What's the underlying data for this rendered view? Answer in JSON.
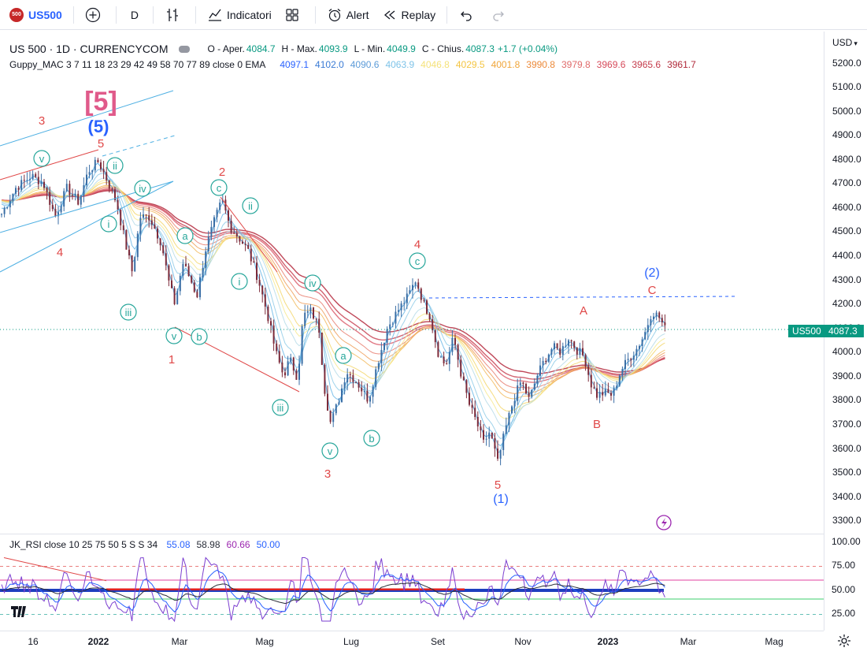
{
  "toolbar": {
    "symbol_logo": "500",
    "symbol": "US500",
    "interval": "D",
    "indicators_label": "Indicatori",
    "alert_label": "Alert",
    "replay_label": "Replay"
  },
  "legend": {
    "title": "US 500 · 1D · CURRENCYCOM",
    "open_key": "O - Aper.",
    "open_val": "4084.7",
    "high_key": "H - Max.",
    "high_val": "4093.9",
    "low_key": "L - Min.",
    "low_val": "4049.9",
    "close_key": "C - Chius.",
    "close_val": "4087.3",
    "change": "+1.7 (+0.04%)",
    "guppy_name": "Guppy_MAC 3 7 11 18 23 29 42 49 58 70 77 89 close 0 EMA",
    "guppy_values": [
      {
        "v": "4097.1",
        "c": "#2962ff"
      },
      {
        "v": "4102.0",
        "c": "#3a7bd5"
      },
      {
        "v": "4090.6",
        "c": "#5c9bd8"
      },
      {
        "v": "4063.9",
        "c": "#7ec3e8"
      },
      {
        "v": "4046.8",
        "c": "#f5e27a"
      },
      {
        "v": "4029.5",
        "c": "#f4c542"
      },
      {
        "v": "4001.8",
        "c": "#f0a63a"
      },
      {
        "v": "3990.8",
        "c": "#ec8a3a"
      },
      {
        "v": "3979.8",
        "c": "#e06a6a"
      },
      {
        "v": "3969.6",
        "c": "#d64a5a"
      },
      {
        "v": "3965.6",
        "c": "#c43a4a"
      },
      {
        "v": "3961.7",
        "c": "#b02a3a"
      }
    ]
  },
  "price_scale": {
    "currency": "USD",
    "ticks": [
      "5200.0",
      "5100.0",
      "5000.0",
      "4900.0",
      "4800.0",
      "4700.0",
      "4600.0",
      "4500.0",
      "4400.0",
      "4300.0",
      "4200.0",
      "4100.0",
      "4000.0",
      "3900.0",
      "3800.0",
      "3700.0",
      "3600.0",
      "3500.0",
      "3400.0",
      "3300.0"
    ],
    "last_price": "4087.3",
    "last_symbol": "US500"
  },
  "rsi": {
    "name": "JK_RSI close 10 25 75 50 5 S S 34",
    "values": [
      {
        "v": "55.08",
        "c": "#2962ff"
      },
      {
        "v": "58.98",
        "c": "#2a2e39"
      },
      {
        "v": "60.66",
        "c": "#9c27b0"
      },
      {
        "v": "50.00",
        "c": "#2962ff"
      }
    ],
    "ticks": [
      "100.00",
      "75.00",
      "50.00",
      "25.00"
    ]
  },
  "time_axis": {
    "ticks": [
      {
        "label": "16",
        "bold": false
      },
      {
        "label": "2022",
        "bold": true
      },
      {
        "label": "Mar",
        "bold": false
      },
      {
        "label": "Mag",
        "bold": false
      },
      {
        "label": "Lug",
        "bold": false
      },
      {
        "label": "Set",
        "bold": false
      },
      {
        "label": "Nov",
        "bold": false
      },
      {
        "label": "2023",
        "bold": true
      },
      {
        "label": "Mar",
        "bold": false
      },
      {
        "label": "Mag",
        "bold": false
      }
    ]
  },
  "wave_labels": {
    "red": [
      "3",
      "5",
      "4",
      "2",
      "1",
      "4",
      "3",
      "5",
      "A",
      "B",
      "C"
    ],
    "bracket5": "[5]",
    "paren5": "(5)",
    "paren1": "(1)",
    "paren2": "(2)",
    "circled": [
      "v",
      "ii",
      "iv",
      "i",
      "iii",
      "v",
      "a",
      "b",
      "c",
      "ii",
      "i",
      "iv",
      "iii",
      "a",
      "b",
      "v",
      "c"
    ]
  },
  "chart_data": {
    "type": "candlestick",
    "title": "US 500 · 1D · CURRENCYCOM",
    "ylim": [
      3250,
      5250
    ],
    "wave_path": [
      [
        "2021-11",
        4700
      ],
      [
        "2021-12",
        4650
      ],
      [
        "2022-01",
        4800
      ],
      [
        "2022-01",
        4300
      ],
      [
        "2022-02",
        4600
      ],
      [
        "2022-03",
        4150
      ],
      [
        "2022-03",
        4650
      ],
      [
        "2022-05",
        3820
      ],
      [
        "2022-06",
        4200
      ],
      [
        "2022-06",
        3650
      ],
      [
        "2022-08",
        4320
      ],
      [
        "2022-10",
        3500
      ],
      [
        "2022-12",
        4100
      ],
      [
        "2022-12",
        3770
      ],
      [
        "2023-02",
        4190
      ]
    ],
    "last": 4087.3
  }
}
